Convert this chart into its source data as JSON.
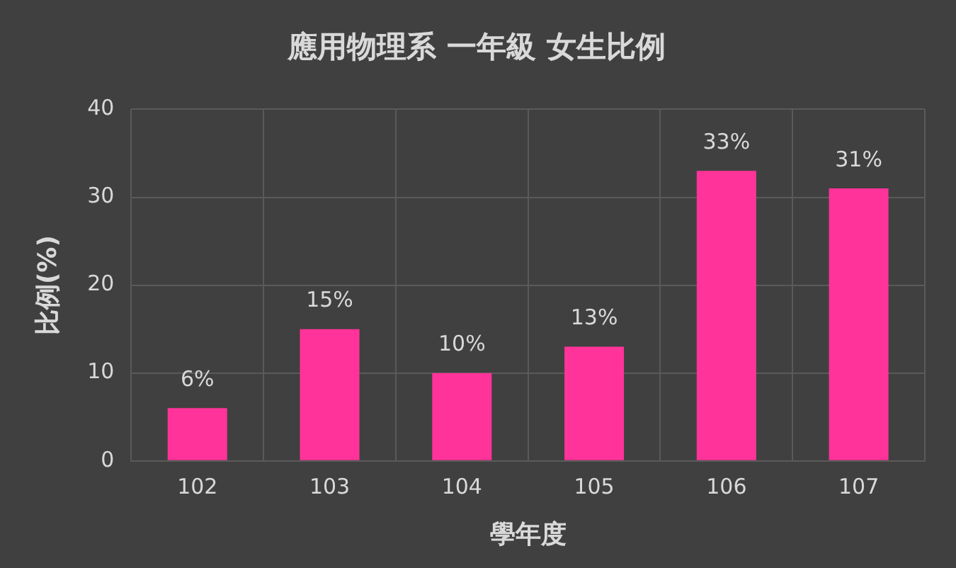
{
  "chart_data": {
    "type": "bar",
    "title": "應用物理系 一年級 女生比例",
    "xlabel": "學年度",
    "ylabel": "比例(%)",
    "categories": [
      "102",
      "103",
      "104",
      "105",
      "106",
      "107"
    ],
    "values": [
      6,
      15,
      10,
      13,
      33,
      31
    ],
    "color": "#ff3399",
    "value_labels": [
      "6%",
      "15%",
      "10%",
      "13%",
      "33%",
      "31%"
    ],
    "ylim": [
      0,
      40
    ],
    "yticks": [
      0,
      10,
      20,
      30,
      40
    ],
    "grid": true,
    "legend": false
  }
}
